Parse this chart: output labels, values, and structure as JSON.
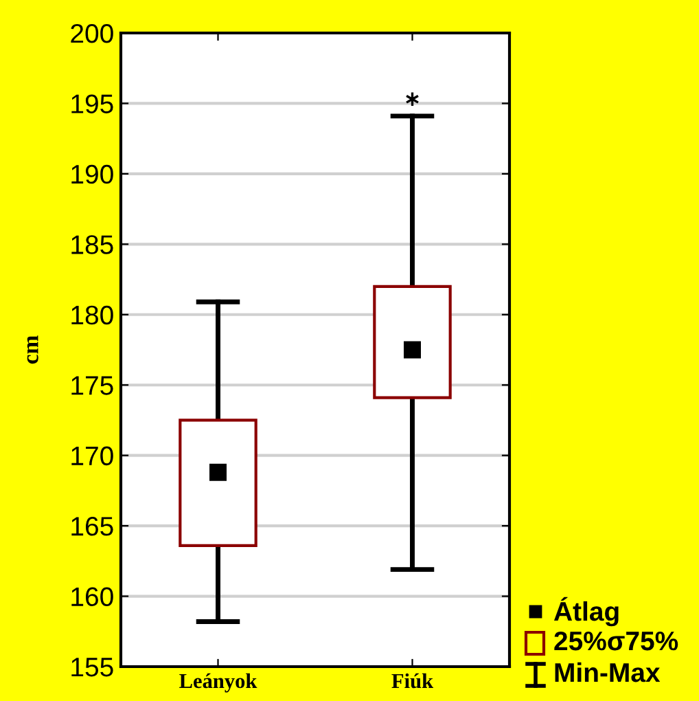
{
  "chart_data": {
    "type": "box",
    "ylabel": "cm",
    "categories": [
      "Leányok",
      "Fiúk"
    ],
    "boxes": [
      {
        "low": 158.2,
        "q1": 163.6,
        "median": null,
        "q3": 172.5,
        "high": 180.9,
        "mean": 168.8
      },
      {
        "low": 161.9,
        "q1": 174.1,
        "median": null,
        "q3": 182.0,
        "high": 194.1,
        "mean": 177.5,
        "outliers": [
          195.3
        ]
      }
    ],
    "annotations": [
      "Átlag",
      "25%σ75%",
      "Min-Max"
    ],
    "color": "#8b0000",
    "ylim": [
      155,
      200
    ],
    "yticks": [
      155,
      160,
      165,
      170,
      175,
      180,
      185,
      190,
      195,
      200
    ],
    "grid": "y"
  }
}
